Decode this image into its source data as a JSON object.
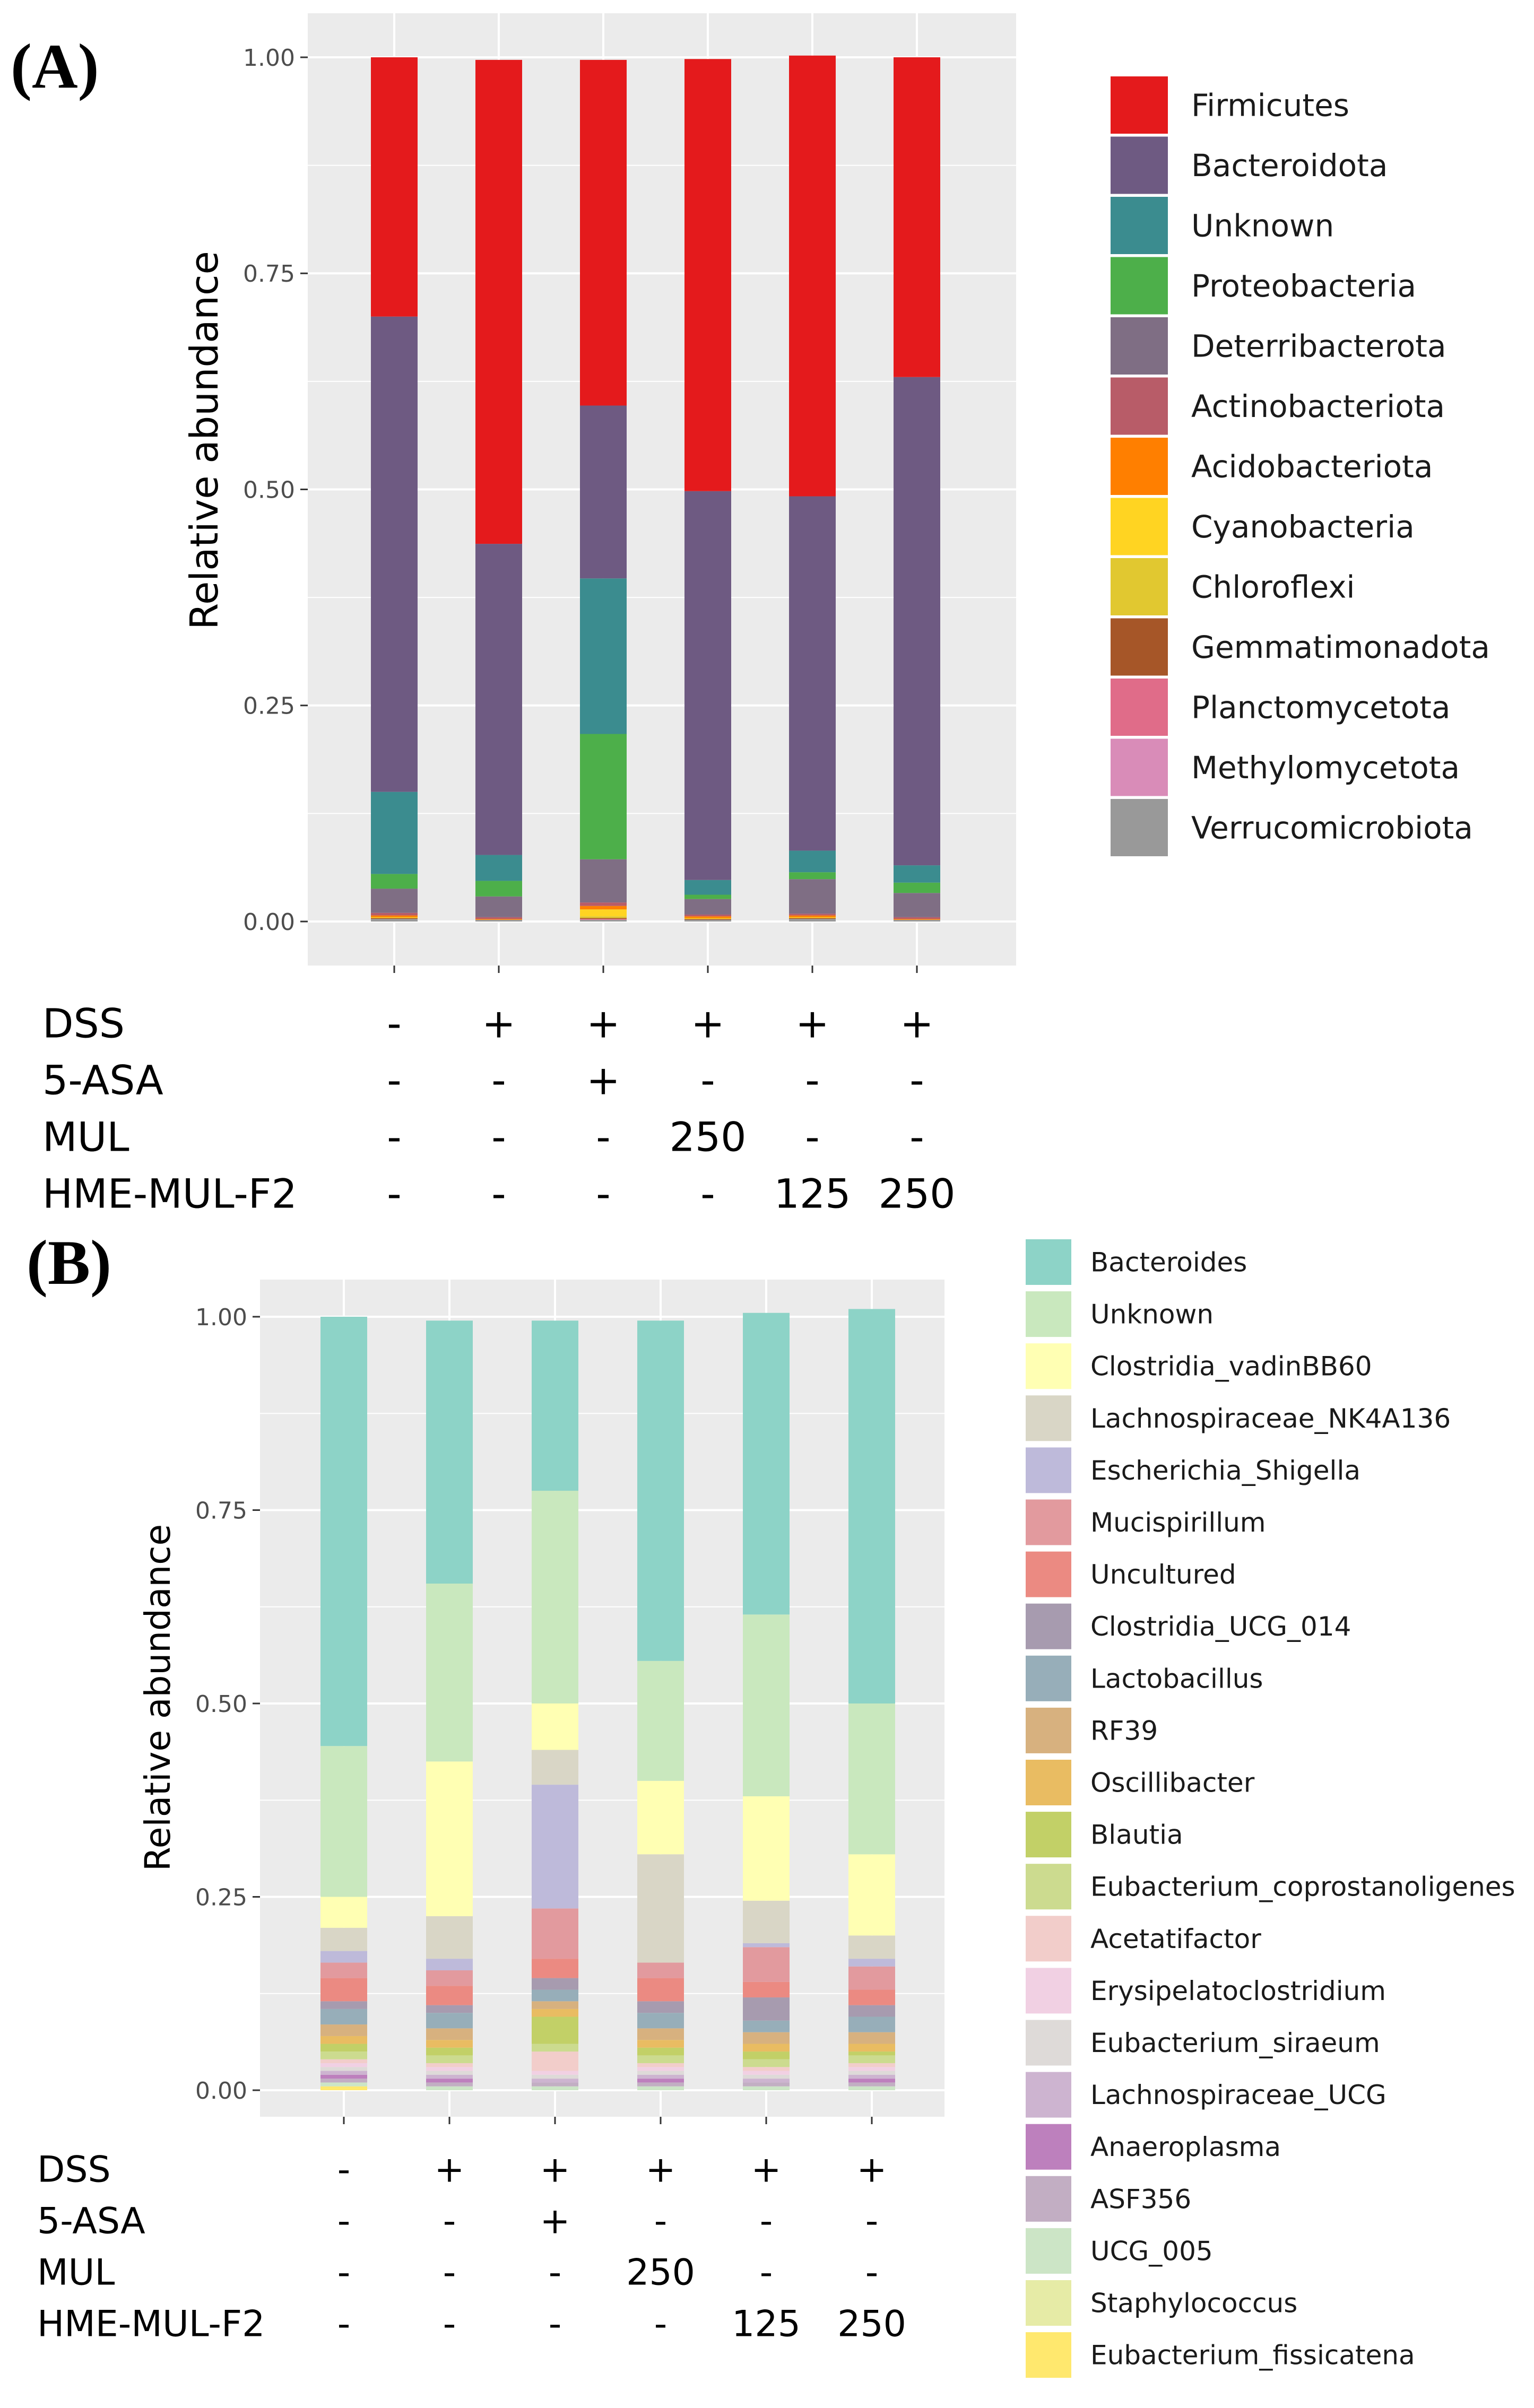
{
  "chart_data": [
    {
      "panel": "(A)",
      "type": "bar",
      "stacked": true,
      "ylabel": "Relative abundance",
      "ylim": [
        0,
        1
      ],
      "yticks": [
        "0.00",
        "0.25",
        "0.50",
        "0.75",
        "1.00"
      ],
      "legend_position": "right",
      "series": [
        {
          "name": "Firmicutes",
          "color": "#E41A1C",
          "values": [
            0.3,
            0.56,
            0.4,
            0.5,
            0.51,
            0.37
          ]
        },
        {
          "name": "Bacteroidota",
          "color": "#6E5A82",
          "values": [
            0.55,
            0.36,
            0.2,
            0.45,
            0.41,
            0.565
          ]
        },
        {
          "name": "Unknown",
          "color": "#3B8C8F",
          "values": [
            0.095,
            0.03,
            0.18,
            0.017,
            0.025,
            0.02
          ]
        },
        {
          "name": "Proteobacteria",
          "color": "#4DAF4A",
          "values": [
            0.017,
            0.018,
            0.145,
            0.005,
            0.008,
            0.012
          ]
        },
        {
          "name": "Deterribacterota",
          "color": "#7F6E84",
          "values": [
            0.028,
            0.024,
            0.05,
            0.018,
            0.04,
            0.028
          ]
        },
        {
          "name": "Actinobacteriota",
          "color": "#B85C68",
          "values": [
            0.003,
            0.002,
            0.004,
            0.002,
            0.002,
            0.002
          ]
        },
        {
          "name": "Acidobacteriota",
          "color": "#FF7F00",
          "values": [
            0.002,
            0.001,
            0.004,
            0.002,
            0.002,
            0.001
          ]
        },
        {
          "name": "Cyanobacteria",
          "color": "#FFD422",
          "values": [
            0.001,
            0.0,
            0.008,
            0.001,
            0.001,
            0.0
          ]
        },
        {
          "name": "Chloroflexi",
          "color": "#E1C830",
          "values": [
            0.0,
            0.0,
            0.002,
            0.0,
            0.0,
            0.0
          ]
        },
        {
          "name": "Gemmatimonadota",
          "color": "#A65628",
          "values": [
            0.001,
            0.0,
            0.001,
            0.001,
            0.001,
            0.0
          ]
        },
        {
          "name": "Planctomycetota",
          "color": "#E06C89",
          "values": [
            0.0,
            0.0,
            0.001,
            0.0,
            0.0,
            0.0
          ]
        },
        {
          "name": "Methylomycetota",
          "color": "#D98CB8",
          "values": [
            0.0,
            0.0,
            0.0,
            0.0,
            0.0,
            0.0
          ]
        },
        {
          "name": "Verrucomicrobiota",
          "color": "#999999",
          "values": [
            0.003,
            0.002,
            0.002,
            0.002,
            0.003,
            0.002
          ]
        }
      ],
      "treatments": [
        {
          "name": "DSS",
          "values": [
            "-",
            "+",
            "+",
            "+",
            "+",
            "+"
          ]
        },
        {
          "name": "5-ASA",
          "values": [
            "-",
            "-",
            "+",
            "-",
            "-",
            "-"
          ]
        },
        {
          "name": "MUL",
          "values": [
            "-",
            "-",
            "-",
            "250",
            "-",
            "-"
          ]
        },
        {
          "name": "HME-MUL-F2",
          "values": [
            "-",
            "-",
            "-",
            "-",
            "125",
            "250"
          ]
        }
      ]
    },
    {
      "panel": "(B)",
      "type": "bar",
      "stacked": true,
      "ylabel": "Relative abundance",
      "ylim": [
        0,
        1
      ],
      "yticks": [
        "0.00",
        "0.25",
        "0.50",
        "0.75",
        "1.00"
      ],
      "legend_position": "right",
      "series": [
        {
          "name": "Bacteroides",
          "color": "#8DD3C7",
          "values": [
            0.555,
            0.34,
            0.22,
            0.44,
            0.39,
            0.51
          ]
        },
        {
          "name": "Unknown",
          "color": "#C9E8BE",
          "values": [
            0.195,
            0.23,
            0.275,
            0.155,
            0.235,
            0.195
          ]
        },
        {
          "name": "Clostridia_vadinBB60",
          "color": "#FFFFB3",
          "values": [
            0.04,
            0.2,
            0.06,
            0.095,
            0.135,
            0.105
          ]
        },
        {
          "name": "Lachnospiraceae_NK4A136",
          "color": "#D9D6C6",
          "values": [
            0.03,
            0.055,
            0.045,
            0.14,
            0.055,
            0.03
          ]
        },
        {
          "name": "Escherichia_Shigella",
          "color": "#BEBADA",
          "values": [
            0.015,
            0.015,
            0.16,
            0.0,
            0.005,
            0.01
          ]
        },
        {
          "name": "Mucispirillum",
          "color": "#E29A9E",
          "values": [
            0.02,
            0.02,
            0.065,
            0.02,
            0.045,
            0.03
          ]
        },
        {
          "name": "Uncultured",
          "color": "#EB8A82",
          "values": [
            0.03,
            0.025,
            0.025,
            0.03,
            0.02,
            0.02
          ]
        },
        {
          "name": "Clostridia_UCG_014",
          "color": "#A79BAF",
          "values": [
            0.01,
            0.01,
            0.015,
            0.015,
            0.03,
            0.015
          ]
        },
        {
          "name": "Lactobacillus",
          "color": "#97AEB9",
          "values": [
            0.02,
            0.02,
            0.015,
            0.02,
            0.015,
            0.02
          ]
        },
        {
          "name": "RF39",
          "color": "#D7B17F",
          "values": [
            0.015,
            0.015,
            0.01,
            0.015,
            0.015,
            0.015
          ]
        },
        {
          "name": "Oscillibacter",
          "color": "#E9BC62",
          "values": [
            0.01,
            0.01,
            0.01,
            0.01,
            0.01,
            0.01
          ]
        },
        {
          "name": "Blautia",
          "color": "#C2D067",
          "values": [
            0.01,
            0.01,
            0.035,
            0.01,
            0.01,
            0.005
          ]
        },
        {
          "name": "Eubacterium_coprostanoligenes",
          "color": "#CCDB8F",
          "values": [
            0.01,
            0.01,
            0.01,
            0.01,
            0.01,
            0.01
          ]
        },
        {
          "name": "Acetatifactor",
          "color": "#F2CDCA",
          "values": [
            0.005,
            0.005,
            0.025,
            0.005,
            0.005,
            0.005
          ]
        },
        {
          "name": "Erysipelatoclostridium",
          "color": "#F1D0E3",
          "values": [
            0.005,
            0.005,
            0.005,
            0.005,
            0.005,
            0.005
          ]
        },
        {
          "name": "Eubacterium_siraeum",
          "color": "#DEDAD8",
          "values": [
            0.005,
            0.005,
            0.005,
            0.005,
            0.005,
            0.005
          ]
        },
        {
          "name": "Lachnospiraceae_UCG",
          "color": "#CDB4D0",
          "values": [
            0.005,
            0.005,
            0.005,
            0.005,
            0.005,
            0.005
          ]
        },
        {
          "name": "Anaeroplasma",
          "color": "#BD80BD",
          "values": [
            0.005,
            0.005,
            0.0,
            0.005,
            0.0,
            0.005
          ]
        },
        {
          "name": "ASF356",
          "color": "#C2AEC3",
          "values": [
            0.005,
            0.005,
            0.005,
            0.005,
            0.005,
            0.005
          ]
        },
        {
          "name": "UCG_005",
          "color": "#CCE5C6",
          "values": [
            0.005,
            0.005,
            0.005,
            0.005,
            0.005,
            0.005
          ]
        },
        {
          "name": "Staphylococcus",
          "color": "#E6EBA6",
          "values": [
            0.0,
            0.0,
            0.0,
            0.0,
            0.0,
            0.0
          ]
        },
        {
          "name": "Eubacterium_fissicatena",
          "color": "#FFE86E",
          "values": [
            0.005,
            0.0,
            0.0,
            0.0,
            0.0,
            0.0
          ]
        }
      ],
      "treatments": [
        {
          "name": "DSS",
          "values": [
            "-",
            "+",
            "+",
            "+",
            "+",
            "+"
          ]
        },
        {
          "name": "5-ASA",
          "values": [
            "-",
            "-",
            "+",
            "-",
            "-",
            "-"
          ]
        },
        {
          "name": "MUL",
          "values": [
            "-",
            "-",
            "-",
            "250",
            "-",
            "-"
          ]
        },
        {
          "name": "HME-MUL-F2",
          "values": [
            "-",
            "-",
            "-",
            "-",
            "125",
            "250"
          ]
        }
      ]
    }
  ]
}
